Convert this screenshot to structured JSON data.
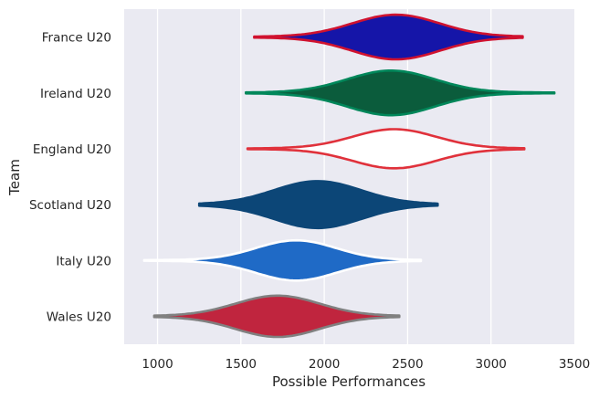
{
  "chart_data": {
    "type": "violin",
    "orientation": "horizontal",
    "title": "",
    "xlabel": "Possible Performances",
    "ylabel": "Team",
    "xlim": [
      800,
      3500
    ],
    "xticks": [
      1000,
      1500,
      2000,
      2500,
      3000,
      3500
    ],
    "grid": true,
    "series": [
      {
        "name": "France U20",
        "fill": "#1515a8",
        "edge": "#d0122f",
        "min": 1580,
        "max": 3190,
        "peak": 2430,
        "halfwidth": 0.8,
        "spread": 260
      },
      {
        "name": "Ireland U20",
        "fill": "#0b5c3c",
        "edge": "#00875a",
        "min": 1530,
        "max": 3380,
        "peak": 2400,
        "halfwidth": 0.8,
        "spread": 260
      },
      {
        "name": "England U20",
        "fill": "#ffffff",
        "edge": "#e0313b",
        "min": 1540,
        "max": 3200,
        "peak": 2420,
        "halfwidth": 0.7,
        "spread": 250
      },
      {
        "name": "Scotland U20",
        "fill": "#0c4677",
        "edge": "#0c4677",
        "min": 1250,
        "max": 2680,
        "peak": 1960,
        "halfwidth": 0.84,
        "spread": 260
      },
      {
        "name": "Italy U20",
        "fill": "#1f6ac6",
        "edge": "#ffffff",
        "min": 920,
        "max": 2580,
        "peak": 1830,
        "halfwidth": 0.72,
        "spread": 240
      },
      {
        "name": "Wales U20",
        "fill": "#c0253e",
        "edge": "#808080",
        "min": 980,
        "max": 2450,
        "peak": 1720,
        "halfwidth": 0.74,
        "spread": 250
      }
    ]
  }
}
